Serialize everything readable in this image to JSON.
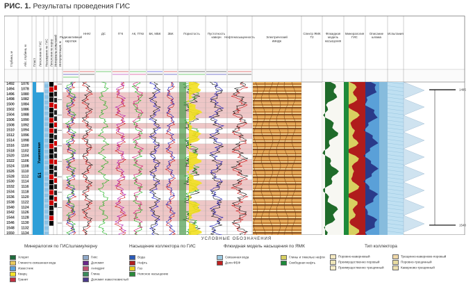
{
  "figure": {
    "label": "РИС. 1.",
    "title": "Результаты проведения ГИС"
  },
  "columns": [
    "Глубина, м",
    "Абс. глубина, м",
    "Пласт",
    "Литология по ГИС",
    "Насыщение по ГИС",
    "Литология по керну",
    "Интервалы испытаний",
    "Интерпретация, м",
    "Радиоактивный каротаж",
    "ННКт",
    "ДС",
    "ГГК",
    "АК, ГГКп",
    "БК, МБК",
    "ЗБК",
    "Пористость",
    "Пустотность каверн",
    "Нефтенасыщенность",
    "Электрический имидж",
    "Спектр ЯМК Т2",
    "Флюидная модель насыщения",
    "Минералогия ГИС",
    "Описание шлама",
    "Испытания"
  ],
  "formation": {
    "name": "Ушаковская",
    "layer": "Б1"
  },
  "depths": [
    "1492",
    "1494",
    "1496",
    "1498",
    "1500",
    "1502",
    "1504",
    "1506",
    "1508",
    "1510",
    "1512",
    "1514",
    "1516",
    "1518",
    "1520",
    "1522",
    "1524",
    "1526",
    "1528",
    "1530",
    "1532",
    "1534",
    "1536",
    "1538",
    "1540",
    "1542",
    "1544",
    "1546",
    "1548",
    "1550"
  ],
  "abs_depths": [
    "1076",
    "1078",
    "1080",
    "1082",
    "1084",
    "1086",
    "1088",
    "1090",
    "1092",
    "1094",
    "1096",
    "1098",
    "1100",
    "1102",
    "1104",
    "1106",
    "1108",
    "1110",
    "1112",
    "1114",
    "1116",
    "1118",
    "1120",
    "1122",
    "1124",
    "1126",
    "1128",
    "1130",
    "1132",
    "1134"
  ],
  "test_marks": [
    "1495",
    "1548"
  ],
  "legend": {
    "heading": "УСЛОВНЫЕ ОБОЗНАЧЕНИЯ",
    "mineralogy": {
      "title": "Минералогия по ГИС/шламу/керну",
      "items": [
        {
          "label": "Хлорит",
          "color": "#1e6b3c"
        },
        {
          "label": "Гипс",
          "color": "#8fa8c8"
        },
        {
          "label": "Глинисто-связанная вода",
          "color": "#e8c85c"
        },
        {
          "label": "Доломит",
          "color": "#6a2a8a"
        },
        {
          "label": "Известняк",
          "color": "#5aa0d8"
        },
        {
          "label": "Ангидрит",
          "color": "#c05070"
        },
        {
          "label": "Кварц",
          "color": "#f3e22a"
        },
        {
          "label": "Глина",
          "color": "#3a8a5a"
        },
        {
          "label": "Гранит",
          "color": "#c03040"
        },
        {
          "label": "Доломит известковистый",
          "color": "#4a3a8a"
        }
      ]
    },
    "saturation": {
      "title": "Насыщение коллектора по ГИС",
      "items": [
        {
          "label": "Вода",
          "color": "#2a5ab8"
        },
        {
          "label": "Нефть",
          "color": "#b02020"
        },
        {
          "label": "Газ",
          "color": "#e8d020"
        },
        {
          "label": "Неясное насыщение",
          "color": "#2a8a3a"
        }
      ]
    },
    "fluid": {
      "title": "Флюидная модель насыщения по ЯМК",
      "items": [
        {
          "label": "Связанная вода",
          "color": "#9ac8e0"
        },
        {
          "label": "Глины и тяжелые нефти",
          "color": "#d8d060"
        },
        {
          "label": "Доля ФБФ",
          "color": "#c02020"
        },
        {
          "label": "Свободная нефть",
          "color": "#1e8a3a"
        }
      ]
    },
    "collector": {
      "title": "Тип коллектора",
      "items": [
        {
          "label": "Поровно-каверновый",
          "color": "#f4e8c0"
        },
        {
          "label": "Трещинно-каверново-поровый",
          "color": "#f0d8a8"
        },
        {
          "label": "Преимущественно поровый",
          "color": "#efe6b8"
        },
        {
          "label": "Поровно-трещинный",
          "color": "#e8dca0"
        },
        {
          "label": "Преимущественно трещинный",
          "color": "#f6ecc8"
        },
        {
          "label": "Каверново-трещинный",
          "color": "#ece0b0"
        }
      ]
    }
  }
}
